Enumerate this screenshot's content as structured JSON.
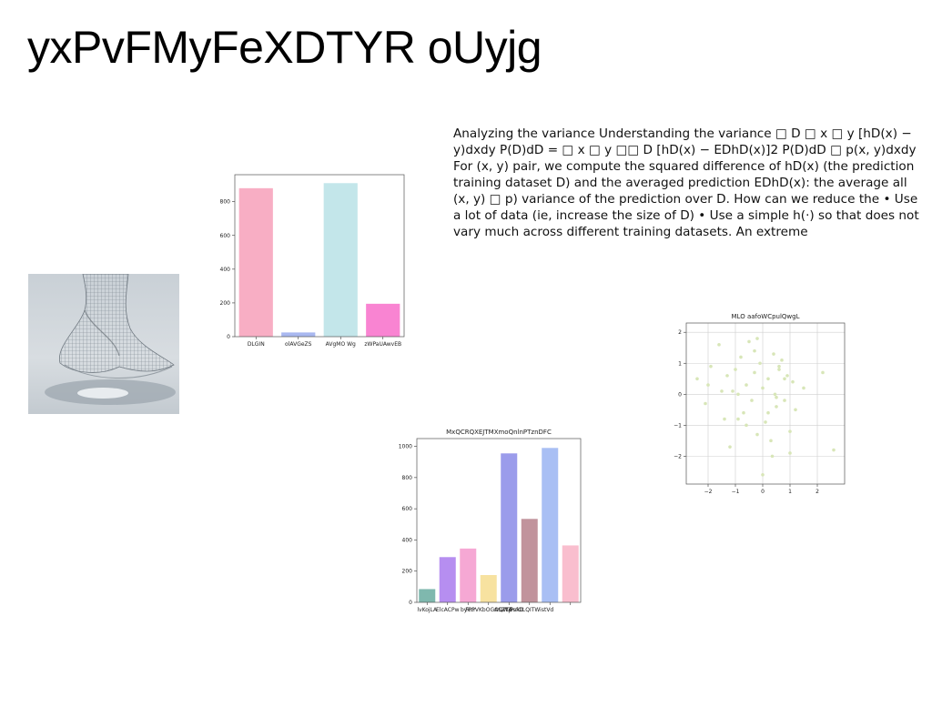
{
  "page": {
    "title": "yxPvFMyFeXDTYR oUyjg",
    "body_text": "Analyzing the variance Understanding the variance □ D □ x □ y [hD(x) − y)dxdy P(D)dD = □ x □ y □□ D [hD(x) − EDhD(x)]2 P(D)dD □ p(x, y)dxdy For (x, y) pair, we compute the squared difference of hD(x) (the prediction training dataset D) and the averaged prediction EDhD(x): the average all (x, y) □ p) variance of the prediction over D. How can we reduce the • Use a lot of data (ie, increase the size of D) • Use a simple h(·) so that does not vary much across different training datasets. An extreme"
  },
  "chart_data": [
    {
      "type": "bar",
      "title": "",
      "xlabel": "",
      "ylabel": "",
      "categories": [
        "DLGIN",
        "olAVGeZS",
        "AVgMO Wg",
        "zWPaUAwvEB"
      ],
      "values": [
        880,
        25,
        910,
        195
      ],
      "colors": [
        "#f8aec4",
        "#a9b8f0",
        "#c3e6ea",
        "#f984d2"
      ],
      "ylim": [
        0,
        960
      ],
      "yticks": [
        0,
        200,
        400,
        600,
        800
      ],
      "grid": false
    },
    {
      "type": "scatter",
      "title": "MLO aafoWCpulQwgL",
      "xlabel": "",
      "ylabel": "",
      "xlim": [
        -2.8,
        3.0
      ],
      "ylim": [
        -2.9,
        2.3
      ],
      "xticks": [
        -2,
        -1,
        0,
        1,
        2
      ],
      "yticks": [
        -2,
        -1,
        0,
        1,
        2
      ],
      "grid": true,
      "point_color": "#d8e6b8",
      "x": [
        -2.4,
        -2.1,
        -1.9,
        -1.6,
        -1.5,
        -1.3,
        -1.2,
        -1.0,
        -0.9,
        -0.8,
        -0.7,
        -0.6,
        -0.5,
        -0.4,
        -0.3,
        -0.2,
        -0.1,
        0.0,
        0.1,
        0.2,
        0.3,
        0.35,
        0.4,
        0.45,
        0.5,
        0.6,
        0.7,
        0.8,
        0.9,
        1.0,
        1.1,
        1.2,
        -1.4,
        -0.9,
        -0.3,
        0.2,
        0.6,
        1.0,
        2.6,
        -2.0,
        -1.1,
        0.0,
        0.5,
        1.5,
        2.2,
        -0.6,
        0.8,
        -0.2
      ],
      "y": [
        0.5,
        -0.3,
        0.9,
        1.6,
        0.1,
        0.6,
        -1.7,
        0.8,
        -0.8,
        1.2,
        -0.6,
        0.3,
        1.7,
        -0.2,
        0.7,
        -1.3,
        1.0,
        0.2,
        -0.9,
        0.5,
        -1.5,
        -2.0,
        1.3,
        0.0,
        -0.4,
        0.8,
        1.1,
        -0.2,
        0.6,
        -1.2,
        0.4,
        -0.5,
        -0.8,
        0.0,
        1.4,
        -0.6,
        0.9,
        -1.9,
        -1.8,
        0.3,
        0.1,
        -2.6,
        -0.1,
        0.2,
        0.7,
        -1.0,
        0.5,
        1.8
      ]
    },
    {
      "type": "bar",
      "title": "MxQCRQXEJTMXmoQnlnPTznDFC",
      "xlabel": "",
      "ylabel": "",
      "categories": [
        "lvKojLA",
        "ElcACPw",
        "bykcr",
        "FPPVKbOGOQWd",
        "ASZTjPsxD",
        "CbufOLQITWistVd",
        "",
        ""
      ],
      "values": [
        85,
        290,
        345,
        175,
        955,
        535,
        990,
        365
      ],
      "colors": [
        "#7fb8ae",
        "#b68ef0",
        "#f6a8d4",
        "#f7e2a0",
        "#9b9ceb",
        "#c1939c",
        "#a9bff4",
        "#f9bece"
      ],
      "ylim": [
        0,
        1050
      ],
      "yticks": [
        0,
        200,
        400,
        600,
        800,
        1000
      ],
      "grid": false
    }
  ]
}
